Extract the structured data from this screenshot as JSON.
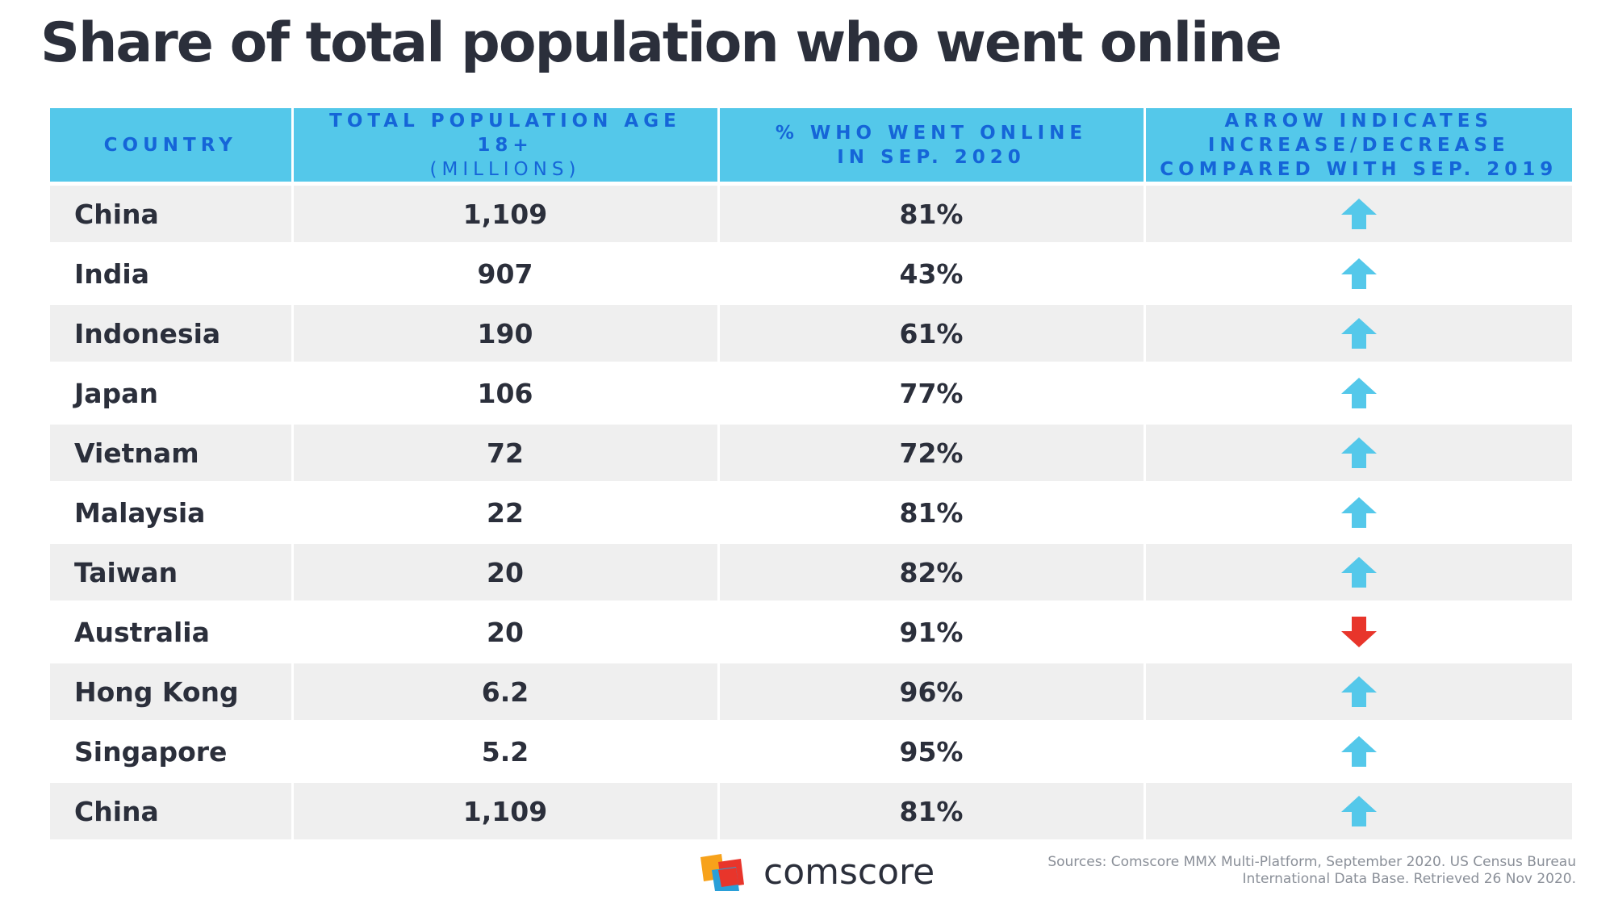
{
  "title": "Share of total population who went online",
  "columns": [
    {
      "lines": [
        "COUNTRY"
      ]
    },
    {
      "lines": [
        "TOTAL POPULATION AGE 18+"
      ],
      "sub": "(MILLIONS)"
    },
    {
      "lines": [
        "% WHO WENT ONLINE",
        "IN SEP. 2020"
      ]
    },
    {
      "lines": [
        "ARROW INDICATES",
        "INCREASE/DECREASE",
        "COMPARED WITH SEP. 2019"
      ]
    }
  ],
  "rows": [
    {
      "country": "China",
      "population": "1,109",
      "online": "81%",
      "trend": "increase"
    },
    {
      "country": "India",
      "population": "907",
      "online": "43%",
      "trend": "increase"
    },
    {
      "country": "Indonesia",
      "population": "190",
      "online": "61%",
      "trend": "increase"
    },
    {
      "country": "Japan",
      "population": "106",
      "online": "77%",
      "trend": "increase"
    },
    {
      "country": "Vietnam",
      "population": "72",
      "online": "72%",
      "trend": "increase"
    },
    {
      "country": "Malaysia",
      "population": "22",
      "online": "81%",
      "trend": "increase"
    },
    {
      "country": "Taiwan",
      "population": "20",
      "online": "82%",
      "trend": "increase"
    },
    {
      "country": "Australia",
      "population": "20",
      "online": "91%",
      "trend": "decrease"
    },
    {
      "country": "Hong Kong",
      "population": "6.2",
      "online": "96%",
      "trend": "increase"
    },
    {
      "country": "Singapore",
      "population": "5.2",
      "online": "95%",
      "trend": "increase"
    },
    {
      "country": "China",
      "population": "1,109",
      "online": "81%",
      "trend": "increase"
    }
  ],
  "colors": {
    "header_bg": "#54c8ea",
    "header_text": "#1565d8",
    "increase_arrow": "#54c8ea",
    "decrease_arrow": "#e8352b",
    "row_alt_bg": "#efefef",
    "title_text": "#2b2f3b"
  },
  "icons": {
    "increase": "arrow-up-icon",
    "decrease": "arrow-down-icon"
  },
  "footer": {
    "logo_text": "comscore",
    "source_lines": [
      "Sources: Comscore MMX Multi-Platform, September 2020. US Census Bureau",
      "International Data Base. Retrieved 26 Nov 2020."
    ]
  },
  "chart_data": {
    "type": "table",
    "title": "Share of total population who went online",
    "columns": [
      "COUNTRY",
      "TOTAL POPULATION AGE 18+ (MILLIONS)",
      "% WHO WENT ONLINE IN SEP. 2020",
      "ARROW INDICATES INCREASE/DECREASE COMPARED WITH SEP. 2019"
    ],
    "categories": [
      "China",
      "India",
      "Indonesia",
      "Japan",
      "Vietnam",
      "Malaysia",
      "Taiwan",
      "Australia",
      "Hong Kong",
      "Singapore",
      "China"
    ],
    "series": [
      {
        "values": [
          1109,
          907,
          190,
          106,
          72,
          22,
          20,
          20,
          6.2,
          5.2,
          1109
        ]
      },
      {
        "values": [
          81,
          43,
          61,
          77,
          72,
          81,
          82,
          91,
          96,
          95,
          81
        ]
      }
    ],
    "change_vs_sep_2019": [
      "increase",
      "increase",
      "increase",
      "increase",
      "increase",
      "increase",
      "increase",
      "decrease",
      "increase",
      "increase",
      "increase"
    ]
  }
}
